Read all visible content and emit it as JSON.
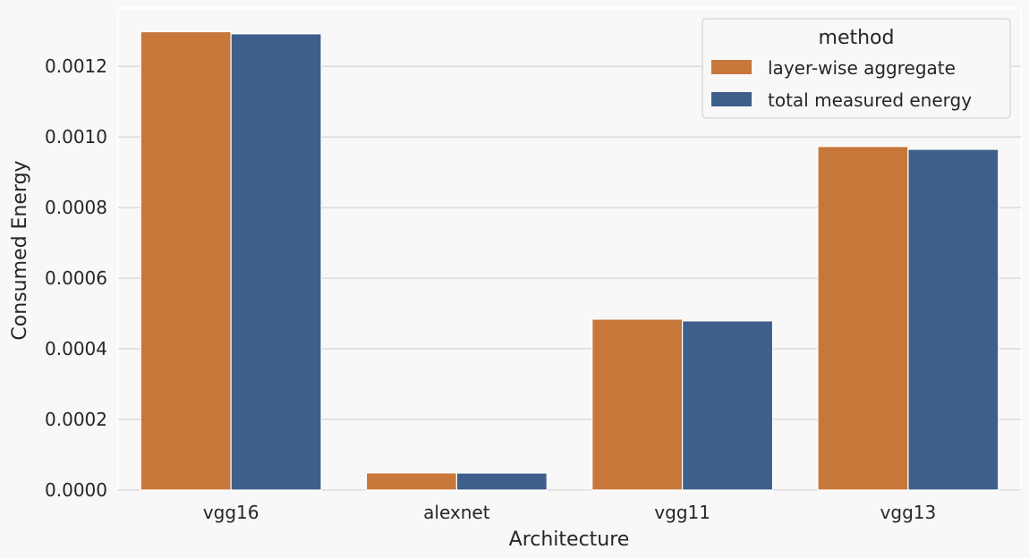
{
  "chart_data": {
    "type": "bar",
    "xlabel": "Architecture",
    "ylabel": "Consumed Energy",
    "categories": [
      "vgg16",
      "alexnet",
      "vgg11",
      "vgg13"
    ],
    "series": [
      {
        "name": "layer-wise aggregate",
        "color": "#c8773a",
        "values": [
          0.001298,
          4.85e-05,
          0.000484,
          0.000973
        ]
      },
      {
        "name": "total measured energy",
        "color": "#3d5f8a",
        "values": [
          0.001292,
          4.82e-05,
          0.000479,
          0.000965
        ]
      }
    ],
    "ylim": [
      0,
      0.001365
    ],
    "yticks": [
      "0.0000",
      "0.0002",
      "0.0004",
      "0.0006",
      "0.0008",
      "0.0010",
      "0.0012"
    ],
    "ytick_values": [
      0,
      0.0002,
      0.0004,
      0.0006,
      0.0008,
      0.001,
      0.0012
    ],
    "grid": "horizontal",
    "legend": {
      "title": "method",
      "placement": "top-right"
    }
  }
}
